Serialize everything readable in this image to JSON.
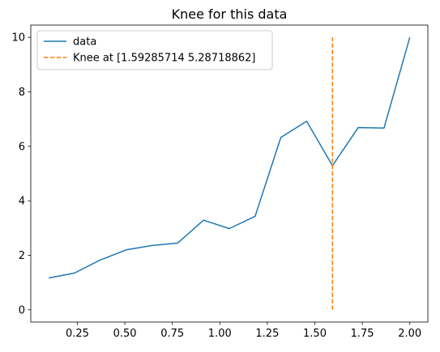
{
  "chart_data": {
    "type": "line",
    "title": "Knee for this data",
    "xlabel": "",
    "ylabel": "",
    "xlim": [
      0.005,
      2.095
    ],
    "ylim": [
      -0.45,
      10.45
    ],
    "x_ticks": [
      0.25,
      0.5,
      0.75,
      1.0,
      1.25,
      1.5,
      1.75,
      2.0
    ],
    "x_tick_labels": [
      "0.25",
      "0.50",
      "0.75",
      "1.00",
      "1.25",
      "1.50",
      "1.75",
      "2.00"
    ],
    "y_ticks": [
      0,
      2,
      4,
      6,
      8,
      10
    ],
    "y_tick_labels": [
      "0",
      "2",
      "4",
      "6",
      "8",
      "10"
    ],
    "grid": false,
    "legend_position": "top-left",
    "series": [
      {
        "name": "data",
        "color": "#1f77b4",
        "style": "solid",
        "x": [
          0.1,
          0.2357,
          0.3714,
          0.5071,
          0.6429,
          0.7786,
          0.9143,
          1.05,
          1.1857,
          1.3214,
          1.4571,
          1.5929,
          1.7286,
          1.8643,
          2.0
        ],
        "y": [
          1.17,
          1.35,
          1.83,
          2.2,
          2.36,
          2.45,
          3.29,
          2.98,
          3.43,
          6.33,
          6.92,
          5.29,
          6.69,
          6.67,
          10.0
        ]
      },
      {
        "name": "Knee at [1.59285714 5.28718862]",
        "color": "#ff7f0e",
        "style": "dashed",
        "x": [
          1.5929,
          1.5929
        ],
        "y": [
          0,
          10
        ]
      }
    ]
  }
}
